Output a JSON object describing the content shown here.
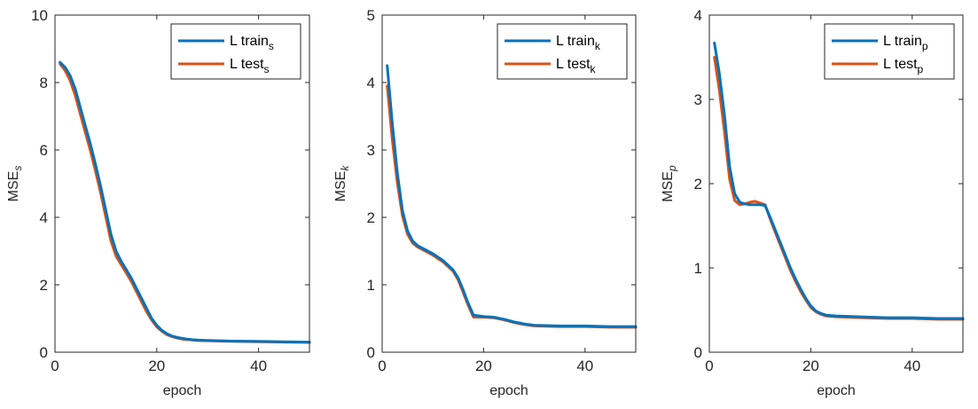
{
  "chart_data": [
    {
      "type": "line",
      "xlabel": "epoch",
      "ylabel": "MSE",
      "ylabel_subscript": "s",
      "xlim": [
        0,
        50
      ],
      "ylim": [
        0,
        10
      ],
      "xticks": [
        0,
        20,
        40
      ],
      "yticks": [
        0,
        2,
        4,
        6,
        8,
        10
      ],
      "grid": false,
      "legend": "top-right",
      "series": [
        {
          "name": "L train",
          "subscript": "s",
          "color": "#0072BD",
          "x": [
            1,
            2,
            3,
            4,
            5,
            6,
            7,
            8,
            9,
            10,
            11,
            12,
            13,
            14,
            15,
            16,
            17,
            18,
            19,
            20,
            21,
            22,
            23,
            24,
            25,
            26,
            27,
            28,
            30,
            35,
            40,
            45,
            50
          ],
          "y": [
            8.6,
            8.45,
            8.2,
            7.8,
            7.25,
            6.7,
            6.15,
            5.55,
            4.9,
            4.2,
            3.5,
            3.0,
            2.7,
            2.45,
            2.2,
            1.9,
            1.6,
            1.3,
            1.0,
            0.8,
            0.65,
            0.55,
            0.48,
            0.44,
            0.41,
            0.39,
            0.37,
            0.36,
            0.35,
            0.33,
            0.32,
            0.31,
            0.3
          ]
        },
        {
          "name": "L test",
          "subscript": "s",
          "color": "#D95319",
          "x": [
            1,
            2,
            3,
            4,
            5,
            6,
            7,
            8,
            9,
            10,
            11,
            12,
            13,
            14,
            15,
            16,
            17,
            18,
            19,
            20,
            21,
            22,
            23,
            24,
            25,
            26,
            27,
            28,
            30,
            35,
            40,
            45,
            50
          ],
          "y": [
            8.55,
            8.35,
            8.05,
            7.6,
            7.05,
            6.5,
            5.95,
            5.35,
            4.7,
            4.0,
            3.3,
            2.85,
            2.6,
            2.35,
            2.1,
            1.8,
            1.5,
            1.2,
            0.95,
            0.75,
            0.62,
            0.52,
            0.46,
            0.42,
            0.39,
            0.37,
            0.36,
            0.35,
            0.34,
            0.32,
            0.31,
            0.3,
            0.29
          ]
        }
      ]
    },
    {
      "type": "line",
      "xlabel": "epoch",
      "ylabel": "MSE",
      "ylabel_subscript": "k",
      "xlim": [
        0,
        50
      ],
      "ylim": [
        0,
        5
      ],
      "xticks": [
        0,
        20,
        40
      ],
      "yticks": [
        0,
        1,
        2,
        3,
        4,
        5
      ],
      "grid": false,
      "legend": "top-right",
      "series": [
        {
          "name": "L train",
          "subscript": "k",
          "color": "#0072BD",
          "x": [
            1,
            2,
            3,
            4,
            5,
            6,
            7,
            8,
            10,
            12,
            14,
            15,
            16,
            17,
            18,
            20,
            22,
            24,
            26,
            28,
            30,
            35,
            40,
            45,
            50
          ],
          "y": [
            4.25,
            3.4,
            2.65,
            2.1,
            1.8,
            1.65,
            1.58,
            1.54,
            1.46,
            1.36,
            1.22,
            1.1,
            0.92,
            0.72,
            0.55,
            0.53,
            0.52,
            0.49,
            0.45,
            0.42,
            0.4,
            0.39,
            0.39,
            0.38,
            0.38
          ]
        },
        {
          "name": "L test",
          "subscript": "k",
          "color": "#D95319",
          "x": [
            1,
            2,
            3,
            4,
            5,
            6,
            7,
            8,
            10,
            12,
            14,
            15,
            16,
            17,
            18,
            20,
            22,
            24,
            26,
            28,
            30,
            35,
            40,
            45,
            50
          ],
          "y": [
            3.95,
            3.15,
            2.5,
            2.02,
            1.75,
            1.62,
            1.56,
            1.52,
            1.44,
            1.34,
            1.2,
            1.07,
            0.88,
            0.69,
            0.52,
            0.52,
            0.51,
            0.48,
            0.44,
            0.41,
            0.39,
            0.38,
            0.38,
            0.37,
            0.37
          ]
        }
      ]
    },
    {
      "type": "line",
      "xlabel": "epoch",
      "ylabel": "MSE",
      "ylabel_subscript": "p",
      "xlim": [
        0,
        50
      ],
      "ylim": [
        0,
        4
      ],
      "xticks": [
        0,
        20,
        40
      ],
      "yticks": [
        0,
        1,
        2,
        3,
        4
      ],
      "grid": false,
      "legend": "top-right",
      "series": [
        {
          "name": "L train",
          "subscript": "p",
          "color": "#0072BD",
          "x": [
            1,
            2,
            3,
            4,
            5,
            6,
            7,
            8,
            9,
            10,
            11,
            12,
            13,
            14,
            15,
            16,
            17,
            18,
            19,
            20,
            21,
            22,
            23,
            25,
            30,
            35,
            40,
            45,
            50
          ],
          "y": [
            3.67,
            3.3,
            2.8,
            2.2,
            1.88,
            1.78,
            1.76,
            1.75,
            1.75,
            1.75,
            1.74,
            1.6,
            1.45,
            1.3,
            1.15,
            1.0,
            0.87,
            0.75,
            0.64,
            0.55,
            0.49,
            0.46,
            0.44,
            0.43,
            0.42,
            0.41,
            0.41,
            0.4,
            0.4
          ]
        },
        {
          "name": "L test",
          "subscript": "p",
          "color": "#D95319",
          "x": [
            1,
            2,
            3,
            4,
            5,
            6,
            7,
            8,
            9,
            10,
            11,
            12,
            13,
            14,
            15,
            16,
            17,
            18,
            19,
            20,
            21,
            22,
            23,
            25,
            30,
            35,
            40,
            45,
            50
          ],
          "y": [
            3.5,
            3.1,
            2.6,
            2.05,
            1.8,
            1.75,
            1.76,
            1.78,
            1.79,
            1.77,
            1.75,
            1.58,
            1.42,
            1.27,
            1.12,
            0.97,
            0.84,
            0.72,
            0.62,
            0.53,
            0.48,
            0.45,
            0.43,
            0.42,
            0.41,
            0.4,
            0.4,
            0.39,
            0.39
          ]
        }
      ]
    }
  ]
}
